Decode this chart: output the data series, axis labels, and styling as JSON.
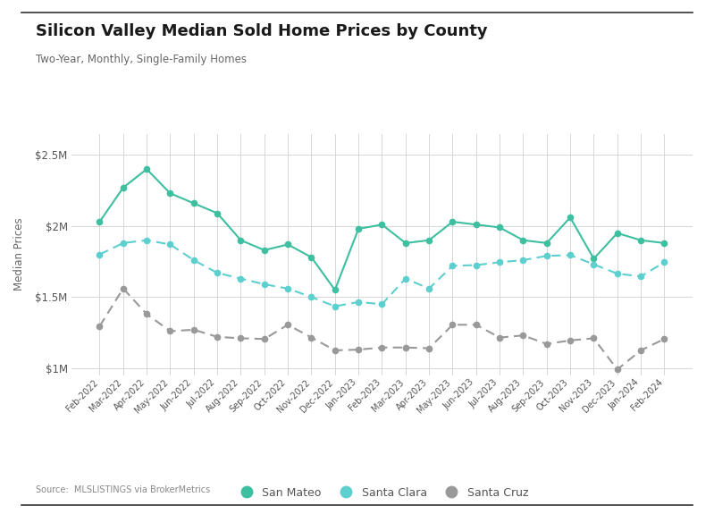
{
  "title": "Silicon Valley Median Sold Home Prices by County",
  "subtitle": "Two-Year, Monthly, Single-Family Homes",
  "source": "Source:  MLSLISTINGS via BrokerMetrics",
  "ylabel": "Median Prices",
  "background_color": "#ffffff",
  "grid_color": "#d0d0d0",
  "labels": [
    "Feb-2022",
    "Mar-2022",
    "Apr-2022",
    "May-2022",
    "Jun-2022",
    "Jul-2022",
    "Aug-2022",
    "Sep-2022",
    "Oct-2022",
    "Nov-2022",
    "Dec-2022",
    "Jan-2023",
    "Feb-2023",
    "Mar-2023",
    "Apr-2023",
    "May-2023",
    "Jun-2023",
    "Jul-2023",
    "Aug-2023",
    "Sep-2023",
    "Oct-2023",
    "Nov-2023",
    "Dec-2023",
    "Jan-2024",
    "Feb-2024"
  ],
  "san_mateo": [
    2030000,
    2270000,
    2400000,
    2230000,
    2160000,
    2090000,
    1900000,
    1830000,
    1870000,
    1780000,
    1550000,
    1980000,
    2010000,
    1880000,
    1900000,
    2030000,
    2010000,
    1990000,
    1900000,
    1880000,
    2060000,
    1770000,
    1950000,
    1900000,
    1880000
  ],
  "santa_clara": [
    1800000,
    1880000,
    1900000,
    1870000,
    1760000,
    1670000,
    1630000,
    1590000,
    1560000,
    1500000,
    1435000,
    1465000,
    1450000,
    1630000,
    1560000,
    1720000,
    1725000,
    1745000,
    1760000,
    1790000,
    1795000,
    1730000,
    1665000,
    1645000,
    1745000
  ],
  "santa_cruz": [
    1295000,
    1560000,
    1380000,
    1260000,
    1270000,
    1220000,
    1210000,
    1205000,
    1305000,
    1215000,
    1125000,
    1130000,
    1145000,
    1145000,
    1140000,
    1305000,
    1305000,
    1215000,
    1230000,
    1170000,
    1195000,
    1210000,
    990000,
    1125000,
    1205000
  ],
  "san_mateo_color": "#3dbfa0",
  "santa_clara_color": "#5ecfcf",
  "santa_cruz_color": "#999999",
  "ylim": [
    950000,
    2650000
  ],
  "yticks": [
    1000000,
    1500000,
    2000000,
    2500000
  ],
  "ytick_labels": [
    "$1M",
    "$1.5M",
    "$2M",
    "$2.5M"
  ]
}
